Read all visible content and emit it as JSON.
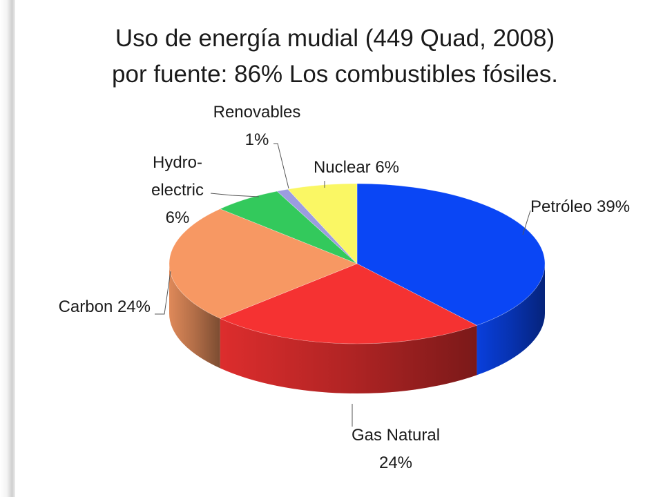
{
  "title_line1": "Uso de energía mudial (449 Quad, 2008)",
  "title_line2": "por fuente: 86% Los combustibles fósiles.",
  "chart_data": {
    "type": "pie",
    "title": "Uso de energía mudial (449 Quad, 2008) por fuente: 86% Los combustibles fósiles.",
    "unit": "%",
    "slices": [
      {
        "name": "Petróleo",
        "value": 39,
        "color": "#0A46F5",
        "label_lines": [
          "Petróleo 39%"
        ]
      },
      {
        "name": "Gas Natural",
        "value": 24,
        "color": "#F53232",
        "label_lines": [
          "Gas Natural",
          "24%"
        ]
      },
      {
        "name": "Carbon",
        "value": 24,
        "color": "#F79863",
        "label_lines": [
          "Carbon 24%"
        ]
      },
      {
        "name": "Hydro-electric",
        "value": 6,
        "color": "#33C95C",
        "label_lines": [
          "Hydro-",
          "electric",
          "6%"
        ]
      },
      {
        "name": "Renovables",
        "value": 1,
        "color": "#9C9CE0",
        "label_lines": [
          "Renovables",
          "1%"
        ]
      },
      {
        "name": "Nuclear",
        "value": 6,
        "color": "#FAF764",
        "label_lines": [
          "Nuclear 6%"
        ]
      }
    ],
    "legend": "none",
    "style": "3d"
  }
}
